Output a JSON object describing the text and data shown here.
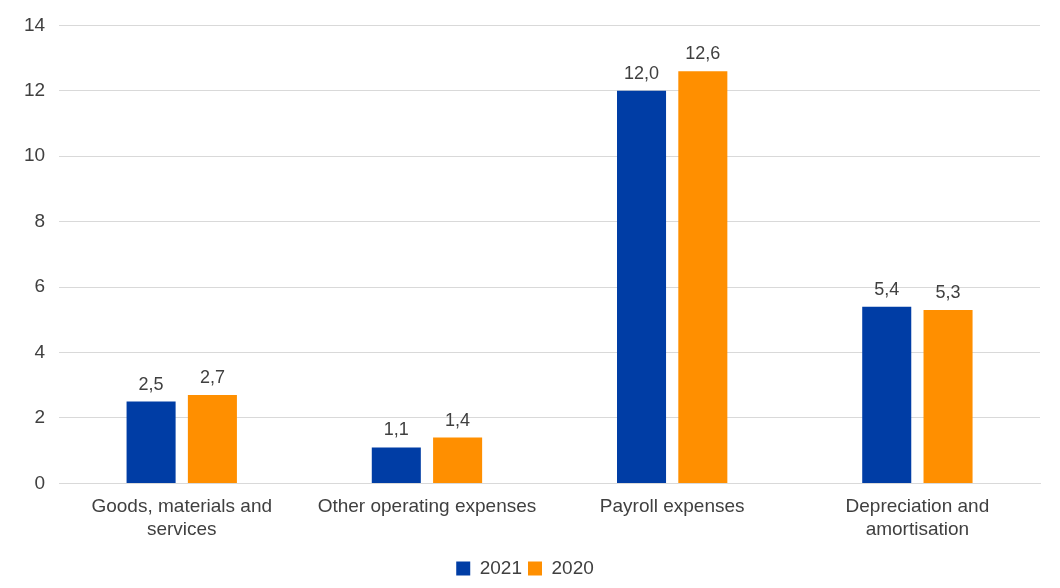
{
  "chart_data": {
    "type": "bar",
    "categories": [
      "Goods, materials and services",
      "Other operating expenses",
      "Payroll expenses",
      "Depreciation and amortisation"
    ],
    "series": [
      {
        "name": "2021",
        "color": "#003da5",
        "values": [
          2.5,
          1.1,
          12.0,
          5.4
        ],
        "value_labels": [
          "2,5",
          "1,1",
          "12,0",
          "5,4"
        ]
      },
      {
        "name": "2020",
        "color": "#ff8f00",
        "values": [
          2.7,
          1.4,
          12.6,
          5.3
        ],
        "value_labels": [
          "2,7",
          "1,4",
          "12,6",
          "5,3"
        ]
      }
    ],
    "ylim": [
      0,
      14
    ],
    "yticks": [
      0,
      2,
      4,
      6,
      8,
      10,
      12,
      14
    ],
    "grid": "y",
    "legend": "bottom"
  }
}
